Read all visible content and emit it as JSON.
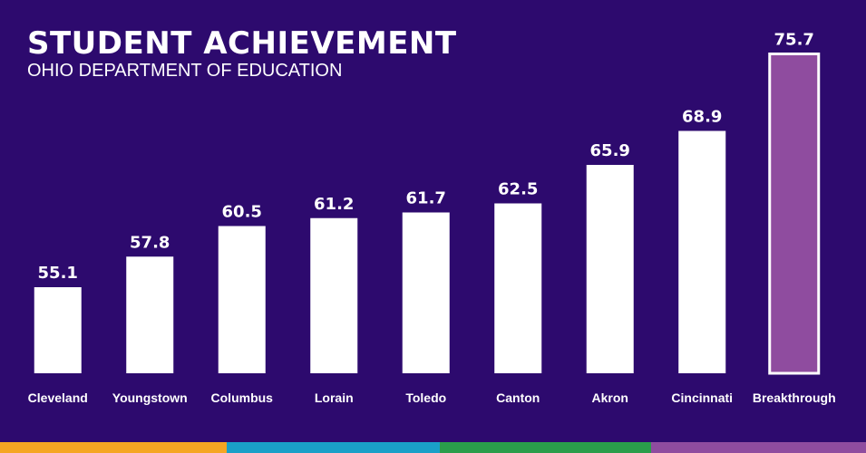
{
  "chart_data": {
    "type": "bar",
    "title": "STUDENT ACHIEVEMENT",
    "subtitle": "OHIO DEPARTMENT OF EDUCATION",
    "categories": [
      "Cleveland",
      "Youngstown",
      "Columbus",
      "Lorain",
      "Toledo",
      "Canton",
      "Akron",
      "Cincinnati",
      "Breakthrough"
    ],
    "values": [
      55.1,
      57.8,
      60.5,
      61.2,
      61.7,
      62.5,
      65.9,
      68.9,
      75.7
    ],
    "value_labels": [
      "55.1",
      "57.8",
      "60.5",
      "61.2",
      "61.7",
      "62.5",
      "65.9",
      "68.9",
      "75.7"
    ],
    "highlight_category": "Breakthrough",
    "xlabel": "",
    "ylabel": "",
    "grid": false,
    "legend": "none"
  },
  "colors": {
    "background": "#2d0a6e",
    "bar": "#ffffff",
    "highlight_bar": "#8f4c9f",
    "highlight_outline": "#ffffff",
    "text": "#ffffff",
    "stripe": [
      "#f5a623",
      "#1aa0c8",
      "#2a9d4b",
      "#8f4c9f"
    ]
  }
}
